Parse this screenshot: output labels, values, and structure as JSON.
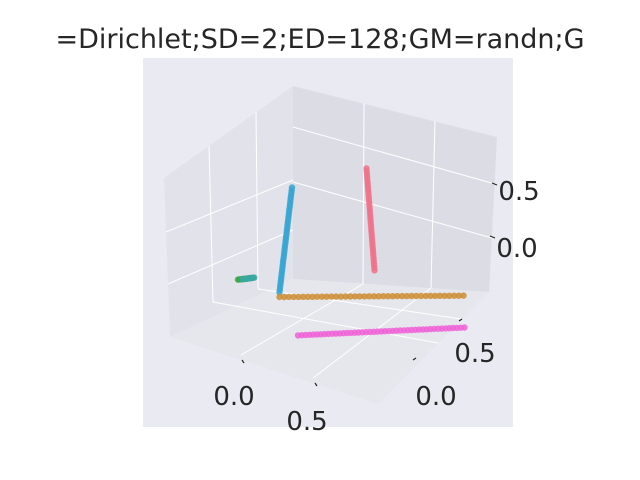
{
  "chart_data": {
    "type": "scatter",
    "projection": "3d",
    "title": "=Dirichlet;SD=2;ED=128;GM=randn;G",
    "style": "seaborn-darkgrid",
    "grid": true,
    "legend": "none",
    "axes": {
      "x": {
        "ticks": [
          0.0,
          0.5
        ],
        "tick_labels": [
          "0.0",
          "0.5"
        ],
        "range": [
          -0.55,
          0.75
        ]
      },
      "y": {
        "ticks": [
          0.0,
          0.5
        ],
        "tick_labels": [
          "0.0",
          "0.5"
        ],
        "range": [
          -0.55,
          0.75
        ]
      },
      "z": {
        "ticks": [
          0.0,
          0.5
        ],
        "tick_labels": [
          "0.0",
          "0.5"
        ],
        "range": [
          -0.55,
          0.75
        ]
      }
    },
    "colors": {
      "pane_back": "#e2e2ea",
      "pane_side": "#dfdfe7",
      "pane_floor": "#e6e6ed",
      "figure_bg": "#eaeaf2",
      "grid": "#ffffff"
    },
    "series": [
      {
        "color": "#37a5d2",
        "points_pixels_hint": false,
        "start": [
          -0.1,
          0.2,
          0.7
        ],
        "end": [
          0.1,
          0.05,
          -0.25
        ],
        "count": 40
      },
      {
        "color": "#f0718a",
        "start": [
          0.0,
          0.55,
          0.95
        ],
        "end": [
          0.1,
          0.55,
          -0.05
        ],
        "count": 35
      },
      {
        "color": "#cc8d33",
        "start": [
          0.1,
          0.05,
          -0.3
        ],
        "end": [
          0.5,
          0.85,
          -0.05
        ],
        "count": 40
      },
      {
        "color": "#ee62d6",
        "start": [
          0.45,
          0.0,
          -0.45
        ],
        "end": [
          0.75,
          0.75,
          -0.2
        ],
        "count": 45
      },
      {
        "color": "#39a845",
        "start": [
          -0.3,
          0.0,
          -0.4
        ],
        "end": [
          -0.25,
          0.05,
          -0.35
        ],
        "count": 12
      },
      {
        "color": "#39a8a0",
        "start": [
          -0.29,
          0.02,
          -0.39
        ],
        "end": [
          -0.24,
          0.06,
          -0.34
        ],
        "count": 10
      }
    ]
  }
}
